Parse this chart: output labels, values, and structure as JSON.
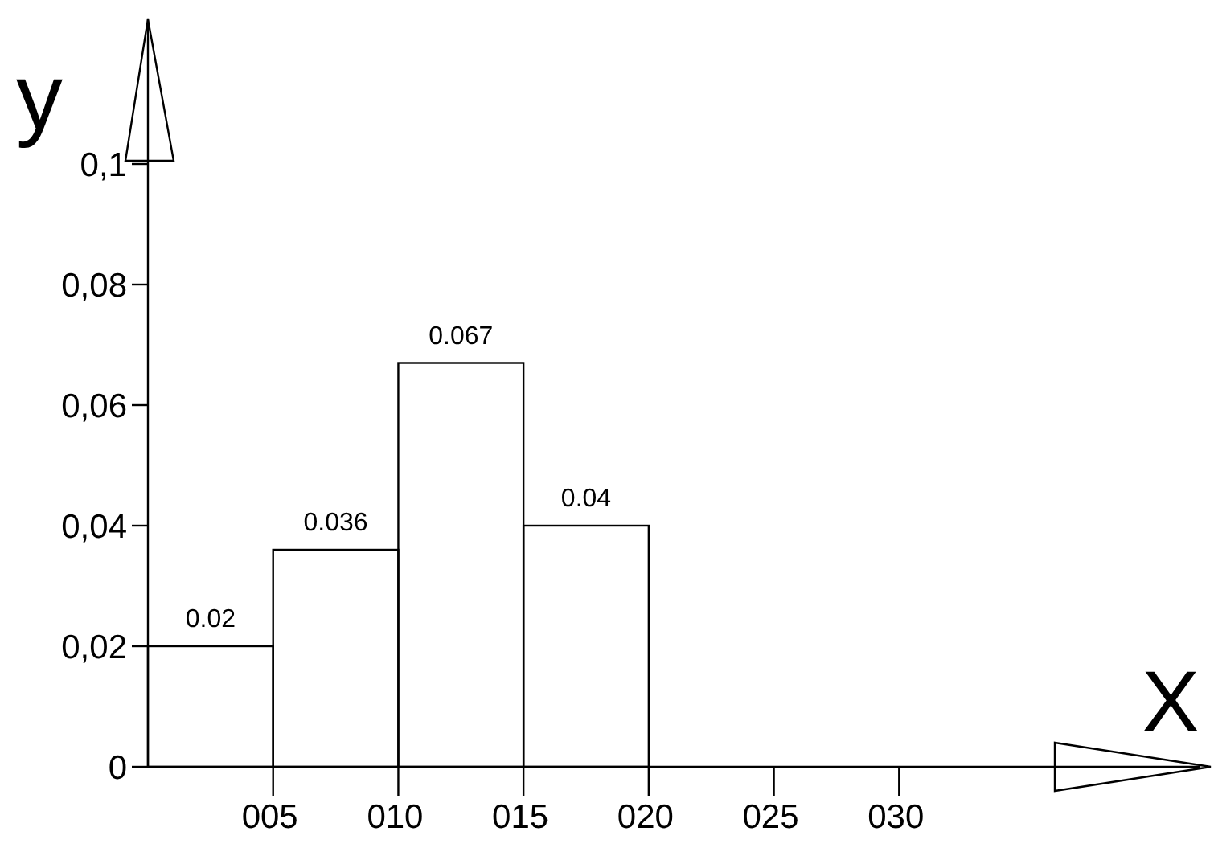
{
  "chart_data": {
    "type": "histogram",
    "xlabel": "X",
    "ylabel": "y",
    "bins": [
      0,
      5,
      10,
      15,
      20
    ],
    "values": [
      0.02,
      0.036,
      0.067,
      0.04
    ],
    "color": "#000000",
    "data_labels": true,
    "xlim": [
      0,
      42
    ],
    "xticks": [
      {
        "value": 5,
        "label": "005"
      },
      {
        "value": 10,
        "label": "010"
      },
      {
        "value": 15,
        "label": "015"
      },
      {
        "value": 20,
        "label": "020"
      },
      {
        "value": 25,
        "label": "025"
      },
      {
        "value": 30,
        "label": "030"
      }
    ],
    "ylim": [
      0,
      0.124
    ],
    "yticks": [
      0,
      {
        "value": 0.02,
        "label": "0,02"
      },
      {
        "value": 0.04,
        "label": "0,04"
      },
      {
        "value": 0.06,
        "label": "0,06"
      },
      {
        "value": 0.08,
        "label": "0,08"
      },
      {
        "value": 0.1,
        "label": "0,1"
      }
    ],
    "grid": false
  }
}
